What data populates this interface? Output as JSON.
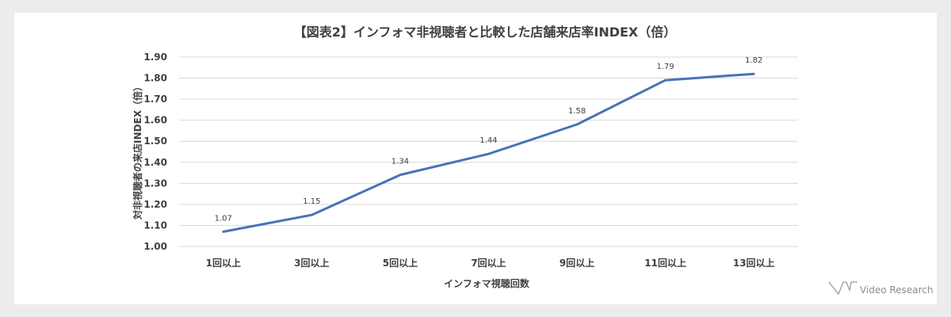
{
  "chart_data": {
    "type": "line",
    "title": "【図表2】インフォマ非視聴者と比較した店舗来店率INDEX（倍）",
    "xlabel": "インフォマ視聴回数",
    "ylabel": "対非視聴者の来店INDEX（倍）",
    "categories": [
      "1回以上",
      "3回以上",
      "5回以上",
      "7回以上",
      "9回以上",
      "11回以上",
      "13回以上"
    ],
    "series": [
      {
        "values": [
          1.07,
          1.15,
          1.34,
          1.44,
          1.58,
          1.79,
          1.82
        ],
        "data_labels": [
          "1.07",
          "1.15",
          "1.34",
          "1.44",
          "1.58",
          "1.79",
          "1.82"
        ],
        "color": "#4a72b8"
      }
    ],
    "ylim": [
      1.0,
      1.9
    ],
    "yticks": [
      "1.00",
      "1.10",
      "1.20",
      "1.30",
      "1.40",
      "1.50",
      "1.60",
      "1.70",
      "1.80",
      "1.90"
    ],
    "grid": true,
    "legend": "none"
  },
  "brand": {
    "logo_text": "Video Research"
  }
}
